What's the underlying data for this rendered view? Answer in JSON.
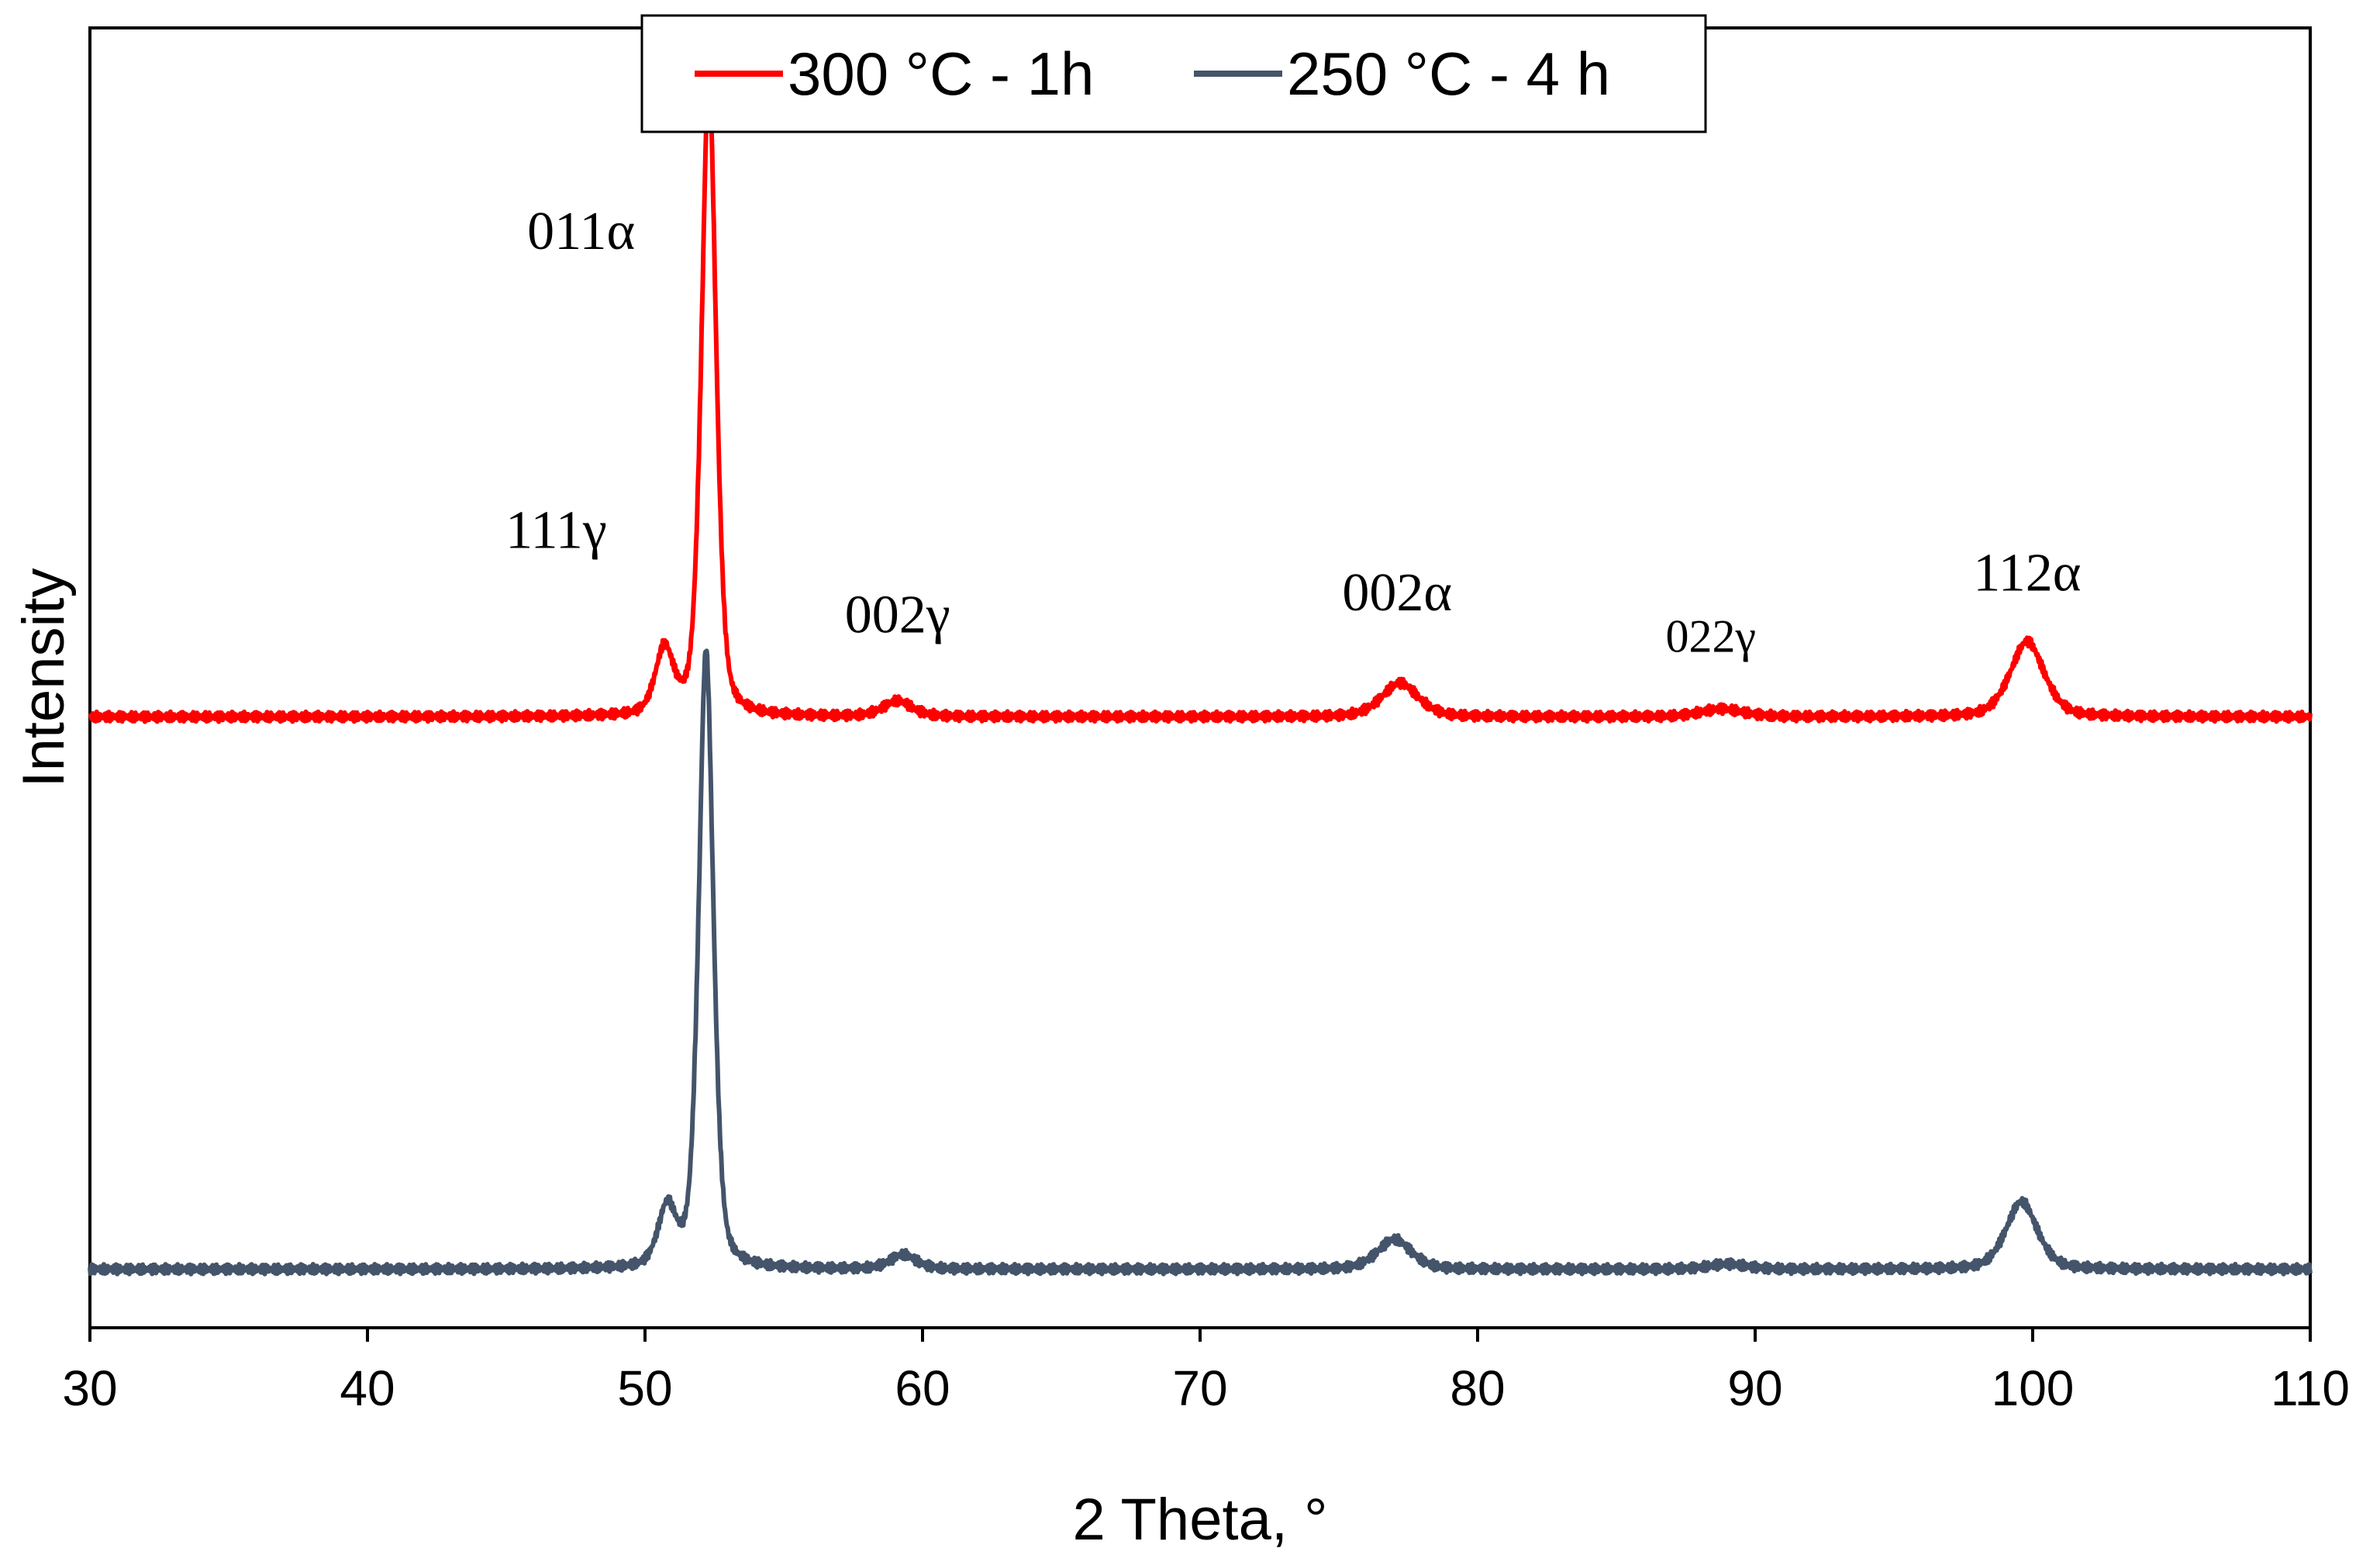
{
  "chart_data": {
    "type": "line",
    "title": "",
    "xlabel": "2 Theta, °",
    "ylabel": "Intensity",
    "xlim": [
      30,
      110
    ],
    "ylim": [
      0,
      1
    ],
    "xticks": [
      30,
      40,
      50,
      60,
      70,
      80,
      90,
      100,
      110
    ],
    "xtick_labels": [
      "30",
      "40",
      "50",
      "60",
      "70",
      "80",
      "90",
      "100",
      "110"
    ],
    "y_tick_labels_shown": false,
    "grid": false,
    "legend": {
      "placement": "top-center",
      "entries": [
        "300 °C - 1h",
        "250 °C - 4 h"
      ]
    },
    "series": [
      {
        "name": "300 °C - 1h",
        "color": "#ff0000",
        "baseline": 0.47,
        "peaks": [
          {
            "x": 50.7,
            "height": 0.05,
            "width": 0.35
          },
          {
            "x": 52.3,
            "height": 0.49,
            "width": 0.28
          },
          {
            "x": 59.1,
            "height": 0.012,
            "width": 0.55
          },
          {
            "x": 77.2,
            "height": 0.026,
            "width": 0.7
          },
          {
            "x": 88.8,
            "height": 0.006,
            "width": 0.8
          },
          {
            "x": 99.8,
            "height": 0.058,
            "width": 0.65
          }
        ]
      },
      {
        "name": "250 °C - 4 h",
        "color": "#44546a",
        "baseline": 0.045,
        "peaks": [
          {
            "x": 50.8,
            "height": 0.045,
            "width": 0.35
          },
          {
            "x": 52.2,
            "height": 0.475,
            "width": 0.28
          },
          {
            "x": 59.3,
            "height": 0.011,
            "width": 0.5
          },
          {
            "x": 77.0,
            "height": 0.023,
            "width": 0.65
          },
          {
            "x": 89.0,
            "height": 0.004,
            "width": 0.7
          },
          {
            "x": 99.6,
            "height": 0.052,
            "width": 0.6
          }
        ]
      }
    ],
    "annotations": [
      {
        "text": "011α",
        "x": 47.7,
        "y": 0.83
      },
      {
        "text": "111γ",
        "x": 46.8,
        "y": 0.6
      },
      {
        "text": "002γ",
        "x": 59.1,
        "y": 0.535
      },
      {
        "text": "002α",
        "x": 77.1,
        "y": 0.552
      },
      {
        "text": "022γ",
        "x": 88.4,
        "y": 0.52
      },
      {
        "text": "112α",
        "x": 99.8,
        "y": 0.567
      }
    ]
  }
}
